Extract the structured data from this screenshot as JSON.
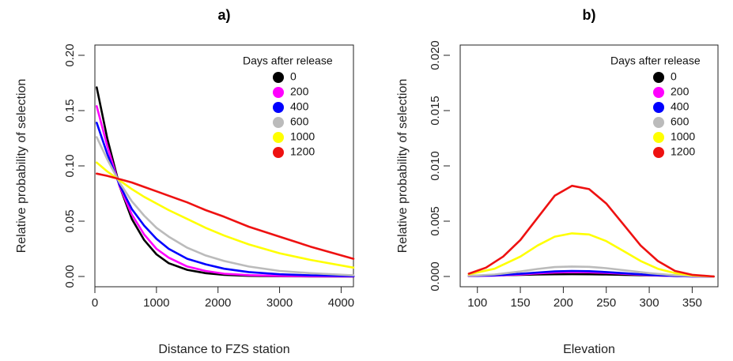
{
  "chart_data": [
    {
      "type": "line",
      "panel_label": "a)",
      "xlabel": "Distance to FZS station",
      "ylabel": "Relative probability of selection",
      "xlim": [
        0,
        4200
      ],
      "ylim": [
        0,
        0.2
      ],
      "xticks": [
        "0",
        "1000",
        "2000",
        "3000",
        "4000"
      ],
      "yticks": [
        "0.00",
        "0.05",
        "0.10",
        "0.15",
        "0.20"
      ],
      "legend": {
        "title": "Days after release",
        "position": "top-right"
      },
      "grid": false,
      "series": [
        {
          "name": "0",
          "color": "#000000",
          "x": [
            30,
            200,
            400,
            600,
            800,
            1000,
            1200,
            1500,
            1800,
            2100,
            2500,
            3000,
            3500,
            4200
          ],
          "y": [
            0.171,
            0.125,
            0.082,
            0.052,
            0.033,
            0.02,
            0.012,
            0.006,
            0.003,
            0.0015,
            0.0006,
            0.0002,
            0.0001,
            0
          ]
        },
        {
          "name": "200",
          "color": "#ff00ff",
          "x": [
            30,
            200,
            400,
            600,
            800,
            1000,
            1200,
            1500,
            1800,
            2100,
            2500,
            3000,
            3500,
            4200
          ],
          "y": [
            0.154,
            0.118,
            0.082,
            0.056,
            0.038,
            0.025,
            0.017,
            0.009,
            0.005,
            0.0025,
            0.0012,
            0.0005,
            0.0002,
            0.0001
          ]
        },
        {
          "name": "400",
          "color": "#0000ff",
          "x": [
            30,
            200,
            400,
            600,
            800,
            1000,
            1200,
            1500,
            1800,
            2100,
            2500,
            3000,
            3500,
            4200
          ],
          "y": [
            0.139,
            0.111,
            0.083,
            0.061,
            0.046,
            0.034,
            0.025,
            0.016,
            0.011,
            0.007,
            0.004,
            0.002,
            0.001,
            0.0003
          ]
        },
        {
          "name": "600",
          "color": "#bbbbbb",
          "x": [
            30,
            200,
            400,
            600,
            800,
            1000,
            1200,
            1500,
            1800,
            2100,
            2500,
            3000,
            3500,
            4200
          ],
          "y": [
            0.126,
            0.106,
            0.085,
            0.068,
            0.055,
            0.044,
            0.036,
            0.026,
            0.019,
            0.014,
            0.009,
            0.005,
            0.003,
            0.001
          ]
        },
        {
          "name": "1000",
          "color": "#ffff00",
          "x": [
            30,
            200,
            400,
            600,
            800,
            1000,
            1200,
            1500,
            1800,
            2100,
            2500,
            3000,
            3500,
            4200
          ],
          "y": [
            0.103,
            0.095,
            0.087,
            0.079,
            0.072,
            0.066,
            0.06,
            0.052,
            0.044,
            0.037,
            0.029,
            0.021,
            0.015,
            0.008
          ]
        },
        {
          "name": "1200",
          "color": "#ee1111",
          "x": [
            30,
            200,
            400,
            600,
            800,
            1000,
            1200,
            1500,
            1800,
            2100,
            2500,
            3000,
            3500,
            4200
          ],
          "y": [
            0.093,
            0.091,
            0.088,
            0.085,
            0.081,
            0.077,
            0.073,
            0.067,
            0.06,
            0.054,
            0.045,
            0.036,
            0.027,
            0.016
          ]
        }
      ]
    },
    {
      "type": "line",
      "panel_label": "b)",
      "xlabel": "Elevation",
      "ylabel": "Relative probability of selection",
      "xlim": [
        80,
        380
      ],
      "ylim": [
        0,
        0.02
      ],
      "xticks": [
        "100",
        "150",
        "200",
        "250",
        "300",
        "350"
      ],
      "yticks": [
        "0.000",
        "0.005",
        "0.010",
        "0.015",
        "0.020"
      ],
      "legend": {
        "title": "Days after release",
        "position": "top-right"
      },
      "grid": false,
      "series": [
        {
          "name": "0",
          "color": "#000000",
          "x": [
            90,
            120,
            150,
            170,
            190,
            210,
            230,
            250,
            270,
            300,
            330,
            350,
            375
          ],
          "y": [
            5e-05,
            0.0001,
            0.00015,
            0.00018,
            0.0002,
            0.00021,
            0.0002,
            0.00018,
            0.00014,
            0.0001,
            5e-05,
            2e-05,
            0
          ]
        },
        {
          "name": "200",
          "color": "#ff00ff",
          "x": [
            90,
            120,
            150,
            170,
            190,
            210,
            230,
            250,
            270,
            300,
            330,
            350,
            375
          ],
          "y": [
            3e-05,
            8e-05,
            0.00018,
            0.00028,
            0.00036,
            0.0004,
            0.00038,
            0.00032,
            0.00024,
            0.00012,
            4e-05,
            1e-05,
            0
          ]
        },
        {
          "name": "400",
          "color": "#0000ff",
          "x": [
            90,
            120,
            150,
            170,
            190,
            210,
            230,
            250,
            270,
            300,
            330,
            350,
            375
          ],
          "y": [
            4e-05,
            0.0001,
            0.00024,
            0.00036,
            0.00046,
            0.0005,
            0.00048,
            0.0004,
            0.0003,
            0.00015,
            5e-05,
            1e-05,
            0
          ]
        },
        {
          "name": "600",
          "color": "#bbbbbb",
          "x": [
            90,
            120,
            150,
            170,
            190,
            210,
            230,
            250,
            270,
            300,
            330,
            350,
            375
          ],
          "y": [
            5e-05,
            0.00018,
            0.00045,
            0.00068,
            0.00085,
            0.0009,
            0.00087,
            0.00075,
            0.00057,
            0.0003,
            0.0001,
            3e-05,
            0
          ]
        },
        {
          "name": "1000",
          "color": "#ffff00",
          "x": [
            90,
            120,
            150,
            170,
            190,
            210,
            230,
            250,
            270,
            290,
            310,
            330,
            350,
            375
          ],
          "y": [
            0.0002,
            0.0007,
            0.0018,
            0.0028,
            0.0036,
            0.0039,
            0.0038,
            0.0032,
            0.0023,
            0.0014,
            0.0007,
            0.0003,
            0.0001,
            0
          ]
        },
        {
          "name": "1200",
          "color": "#ee1111",
          "x": [
            90,
            110,
            130,
            150,
            170,
            190,
            210,
            230,
            250,
            270,
            290,
            310,
            330,
            350,
            375
          ],
          "y": [
            0.00025,
            0.0008,
            0.0018,
            0.0033,
            0.0053,
            0.0073,
            0.0082,
            0.0079,
            0.0066,
            0.0047,
            0.0028,
            0.0014,
            0.0005,
            0.00015,
            0
          ]
        }
      ]
    }
  ]
}
